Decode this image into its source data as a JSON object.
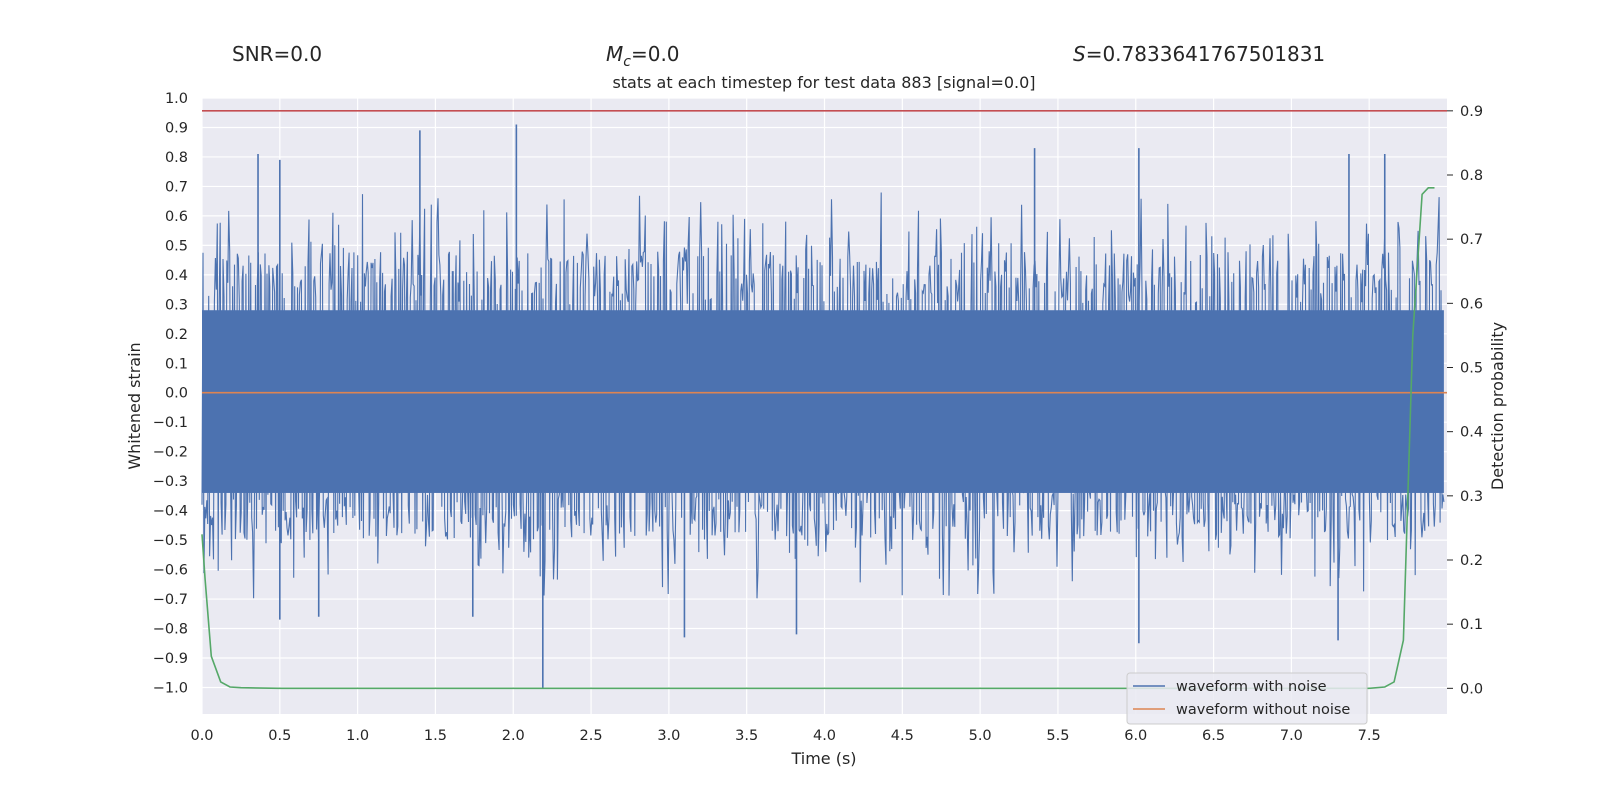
{
  "header": {
    "snr": "SNR=0.0",
    "mc_symbol": "M",
    "mc_sub": "c",
    "mc_value": "=0.0",
    "s_symbol": "S",
    "s_value": "=0.7833641767501831"
  },
  "chart_data": {
    "type": "line",
    "title": "stats at each timestep for test data 883 [signal=0.0]",
    "xlabel": "Time (s)",
    "ylabel": "Whitened strain",
    "y2label": "Detection probability",
    "xlim": [
      0.0,
      8.0
    ],
    "ylim": [
      -1.09,
      1.0
    ],
    "y2lim": [
      -0.04,
      0.92
    ],
    "x_ticks": [
      "0.0",
      "0.5",
      "1.0",
      "1.5",
      "2.0",
      "2.5",
      "3.0",
      "3.5",
      "4.0",
      "4.5",
      "5.0",
      "5.5",
      "6.0",
      "6.5",
      "7.0",
      "7.5"
    ],
    "y_ticks": [
      "1.0",
      "0.9",
      "0.8",
      "0.7",
      "0.6",
      "0.5",
      "0.4",
      "0.3",
      "0.2",
      "0.1",
      "0.0",
      "−0.1",
      "−0.2",
      "−0.3",
      "−0.4",
      "−0.5",
      "−0.6",
      "−0.7",
      "−0.8",
      "−0.9",
      "−1.0"
    ],
    "y2_ticks": [
      "0.9",
      "0.8",
      "0.7",
      "0.6",
      "0.5",
      "0.4",
      "0.3",
      "0.2",
      "0.1",
      "0.0"
    ],
    "grid": true,
    "legend_position": "lower-right",
    "series": [
      {
        "name": "waveform with noise",
        "axis": "left",
        "color": "#4c72b0",
        "envelope_note": "dense noise, approximately ±0.4 to ±0.6 typical with spikes",
        "spikes": [
          {
            "x": 0.36,
            "y": 0.81
          },
          {
            "x": 0.5,
            "y": 0.79
          },
          {
            "x": 1.4,
            "y": 0.89
          },
          {
            "x": 2.02,
            "y": 0.91
          },
          {
            "x": 5.35,
            "y": 0.83
          },
          {
            "x": 6.02,
            "y": 0.83
          },
          {
            "x": 7.37,
            "y": 0.81
          },
          {
            "x": 7.6,
            "y": 0.81
          },
          {
            "x": 2.19,
            "y": -1.0
          },
          {
            "x": 0.5,
            "y": -0.77
          },
          {
            "x": 0.75,
            "y": -0.76
          },
          {
            "x": 1.74,
            "y": -0.76
          },
          {
            "x": 3.82,
            "y": -0.82
          },
          {
            "x": 6.02,
            "y": -0.85
          },
          {
            "x": 7.3,
            "y": -0.84
          },
          {
            "x": 3.1,
            "y": -0.83
          }
        ]
      },
      {
        "name": "waveform without noise",
        "axis": "left",
        "color": "#dd8452",
        "x": [
          0.0,
          8.0
        ],
        "y": [
          0.0,
          0.0
        ]
      },
      {
        "name": "",
        "axis": "right",
        "color": "#55a868",
        "x": [
          0.0,
          0.02,
          0.06,
          0.12,
          0.18,
          0.25,
          0.5,
          1.0,
          3.0,
          6.0,
          7.5,
          7.6,
          7.66,
          7.72,
          7.78,
          7.84,
          7.88,
          7.92
        ],
        "y": [
          0.24,
          0.17,
          0.05,
          0.01,
          0.002,
          0.001,
          0.0,
          0.0,
          0.0,
          0.0,
          0.0,
          0.002,
          0.01,
          0.075,
          0.55,
          0.77,
          0.78,
          0.78
        ]
      },
      {
        "name": "",
        "axis": "right",
        "color": "#c44e52",
        "x": [
          0.0,
          8.0
        ],
        "y": [
          0.9,
          0.9
        ]
      }
    ]
  }
}
